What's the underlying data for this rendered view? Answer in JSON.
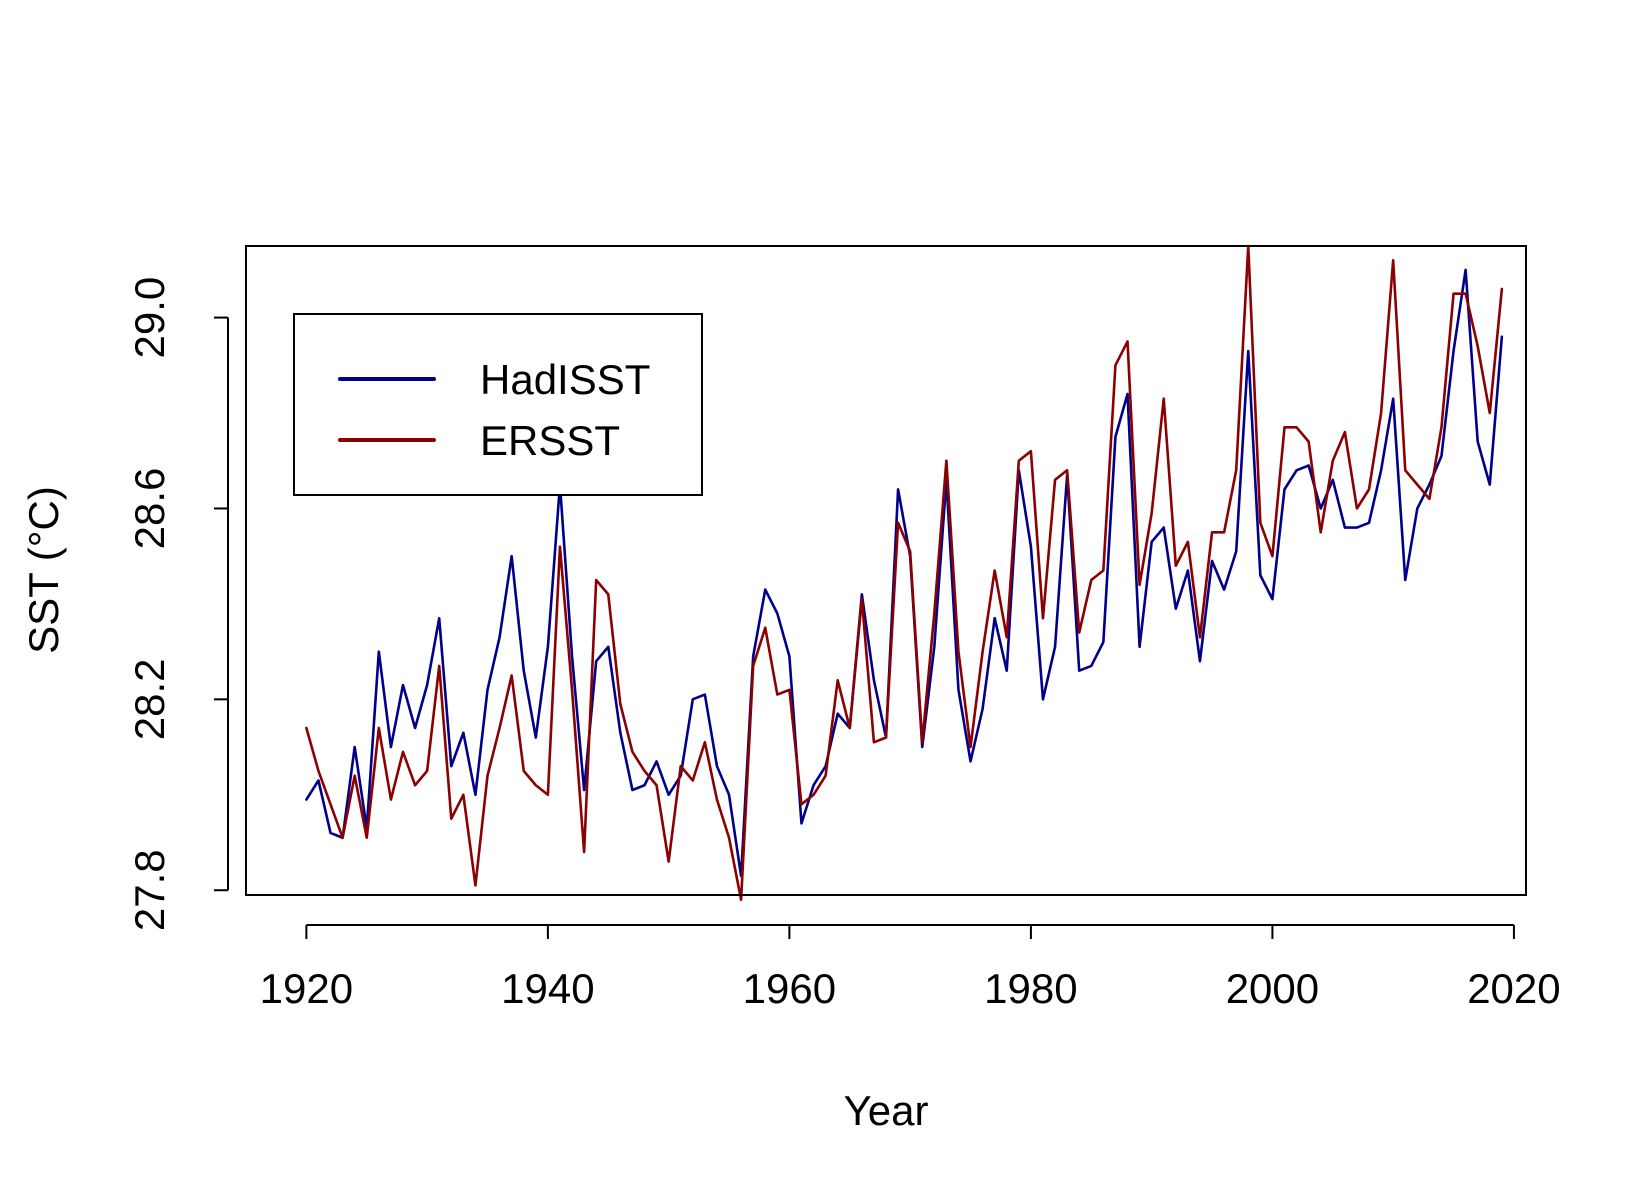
{
  "chart_data": {
    "type": "line",
    "title": "",
    "xlabel": "Year",
    "ylabel": "SST (°C)",
    "xlim": [
      1915,
      2021
    ],
    "ylim": [
      27.79,
      29.15
    ],
    "x_ticks": [
      1920,
      1940,
      1960,
      1980,
      2000,
      2020
    ],
    "y_ticks": [
      27.8,
      28.2,
      28.6,
      29.0
    ],
    "y_tick_labels": [
      "27.8",
      "28.2",
      "28.6",
      "29.0"
    ],
    "x_tick_labels": [
      "1920",
      "1940",
      "1960",
      "1980",
      "2000",
      "2020"
    ],
    "legend_position": "top-left",
    "grid": false,
    "x": [
      1920,
      1921,
      1922,
      1923,
      1924,
      1925,
      1926,
      1927,
      1928,
      1929,
      1930,
      1931,
      1932,
      1933,
      1934,
      1935,
      1936,
      1937,
      1938,
      1939,
      1940,
      1941,
      1942,
      1943,
      1944,
      1945,
      1946,
      1947,
      1948,
      1949,
      1950,
      1951,
      1952,
      1953,
      1954,
      1955,
      1956,
      1957,
      1958,
      1959,
      1960,
      1961,
      1962,
      1963,
      1964,
      1965,
      1966,
      1967,
      1968,
      1969,
      1970,
      1971,
      1972,
      1973,
      1974,
      1975,
      1976,
      1977,
      1978,
      1979,
      1980,
      1981,
      1982,
      1983,
      1984,
      1985,
      1986,
      1987,
      1988,
      1989,
      1990,
      1991,
      1992,
      1993,
      1994,
      1995,
      1996,
      1997,
      1998,
      1999,
      2000,
      2001,
      2002,
      2003,
      2004,
      2005,
      2006,
      2007,
      2008,
      2009,
      2010,
      2011,
      2012,
      2013,
      2014,
      2015,
      2016,
      2017,
      2018,
      2019
    ],
    "series": [
      {
        "name": "HadISST",
        "color": "#00008B",
        "values": [
          27.99,
          28.03,
          27.92,
          27.91,
          28.1,
          27.93,
          28.3,
          28.1,
          28.23,
          28.14,
          28.23,
          28.37,
          28.06,
          28.13,
          28.0,
          28.22,
          28.33,
          28.5,
          28.26,
          28.12,
          28.31,
          28.65,
          28.29,
          28.01,
          28.28,
          28.31,
          28.13,
          28.01,
          28.02,
          28.07,
          28.0,
          28.04,
          28.2,
          28.21,
          28.06,
          28.0,
          27.83,
          28.29,
          28.43,
          28.38,
          28.29,
          27.94,
          28.02,
          28.06,
          28.17,
          28.14,
          28.42,
          28.24,
          28.12,
          28.64,
          28.5,
          28.1,
          28.31,
          28.66,
          28.22,
          28.07,
          28.18,
          28.37,
          28.26,
          28.68,
          28.52,
          28.2,
          28.31,
          28.67,
          28.26,
          28.27,
          28.32,
          28.75,
          28.84,
          28.31,
          28.53,
          28.56,
          28.39,
          28.47,
          28.28,
          28.49,
          28.43,
          28.51,
          28.93,
          28.46,
          28.41,
          28.64,
          28.68,
          28.69,
          28.6,
          28.66,
          28.56,
          28.56,
          28.57,
          28.68,
          28.83,
          28.45,
          28.6,
          28.65,
          28.71,
          28.93,
          29.1,
          28.74,
          28.65,
          28.96
        ]
      },
      {
        "name": "ERSST",
        "color": "#8B0000",
        "values": [
          28.14,
          28.05,
          27.98,
          27.91,
          28.04,
          27.91,
          28.14,
          27.99,
          28.09,
          28.02,
          28.05,
          28.27,
          27.95,
          28.0,
          27.81,
          28.04,
          28.14,
          28.25,
          28.05,
          28.02,
          28.0,
          28.52,
          28.22,
          27.88,
          28.45,
          28.42,
          28.19,
          28.09,
          28.05,
          28.02,
          27.86,
          28.06,
          28.03,
          28.11,
          27.99,
          27.91,
          27.78,
          28.27,
          28.35,
          28.21,
          28.22,
          27.98,
          28.0,
          28.04,
          28.24,
          28.14,
          28.41,
          28.11,
          28.12,
          28.57,
          28.51,
          28.11,
          28.38,
          28.7,
          28.3,
          28.1,
          28.3,
          28.47,
          28.33,
          28.7,
          28.72,
          28.37,
          28.66,
          28.68,
          28.34,
          28.45,
          28.47,
          28.9,
          28.95,
          28.44,
          28.59,
          28.83,
          28.48,
          28.53,
          28.33,
          28.55,
          28.55,
          28.68,
          29.15,
          28.57,
          28.5,
          28.77,
          28.77,
          28.74,
          28.55,
          28.7,
          28.76,
          28.6,
          28.64,
          28.8,
          29.12,
          28.68,
          28.65,
          28.62,
          28.77,
          29.05,
          29.05,
          28.94,
          28.8,
          29.06
        ]
      }
    ]
  }
}
